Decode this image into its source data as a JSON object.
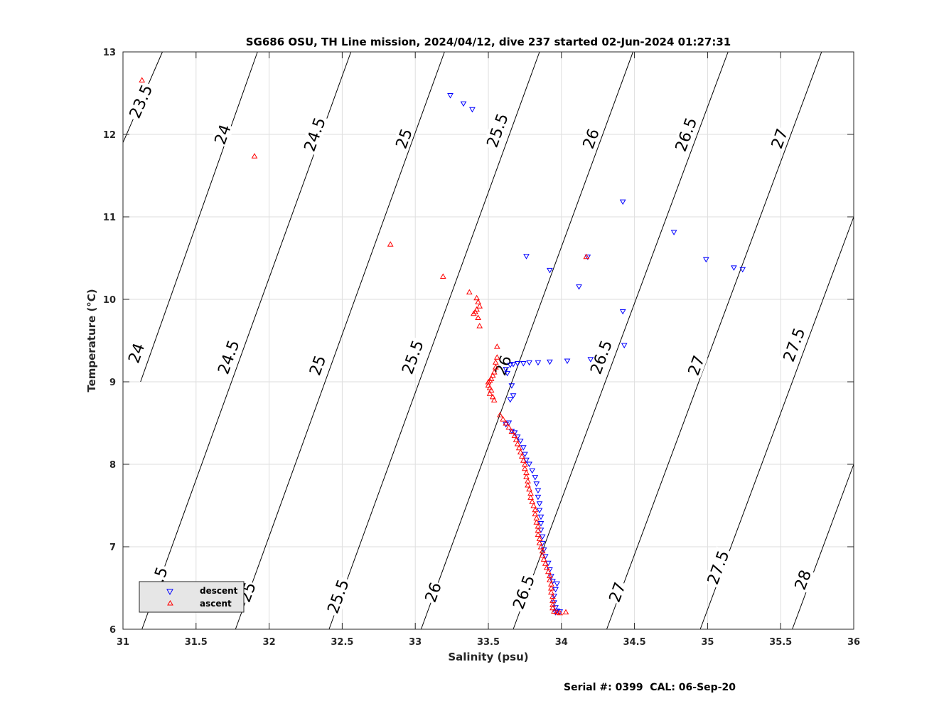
{
  "chart_data": {
    "type": "scatter",
    "title": "SG686 OSU, TH Line mission, 2024/04/12, dive 237 started 02-Jun-2024 01:27:31",
    "xlabel": "Salinity (psu)",
    "ylabel": "Temperature (°C)",
    "xlim": [
      31,
      36
    ],
    "ylim": [
      6,
      13
    ],
    "grid": true,
    "x_ticks": [
      31,
      31.5,
      32,
      32.5,
      33,
      33.5,
      34,
      34.5,
      35,
      35.5,
      36
    ],
    "x_tick_labels": [
      "31",
      "31.5",
      "32",
      "32.5",
      "33",
      "33.5",
      "34",
      "34.5",
      "35",
      "35.5",
      "36"
    ],
    "y_ticks": [
      6,
      7,
      8,
      9,
      10,
      11,
      12,
      13
    ],
    "y_tick_labels": [
      "6",
      "7",
      "8",
      "9",
      "10",
      "11",
      "12",
      "13"
    ],
    "legend": {
      "placement": "bottom-left",
      "entries": [
        {
          "label": "descent",
          "color": "#0000ff",
          "marker": "triangle-down"
        },
        {
          "label": "ascent",
          "color": "#ff0000",
          "marker": "triangle-up"
        }
      ]
    },
    "density_contours": [
      {
        "sigma": "23.5",
        "segments": [
          [
            [
              31.0,
              11.9
            ],
            [
              31.27,
              13.0
            ]
          ]
        ],
        "labels": [
          {
            "text": "23.5",
            "x": 31.12,
            "y": 12.4
          }
        ]
      },
      {
        "sigma": "24",
        "segments": [
          [
            [
              31.12,
              9.0
            ],
            [
              31.92,
              13.0
            ]
          ]
        ],
        "labels": [
          {
            "text": "24",
            "x": 31.09,
            "y": 9.35
          },
          {
            "text": "24",
            "x": 31.68,
            "y": 12.0
          }
        ]
      },
      {
        "sigma": "24.5",
        "segments": [
          [
            [
              31.13,
              6.0
            ],
            [
              32.56,
              13.0
            ]
          ]
        ],
        "labels": [
          {
            "text": "24.5",
            "x": 31.23,
            "y": 6.55
          },
          {
            "text": "24.5",
            "x": 31.72,
            "y": 9.3
          },
          {
            "text": "24.5",
            "x": 32.31,
            "y": 12.0
          }
        ]
      },
      {
        "sigma": "25",
        "segments": [
          [
            [
              31.77,
              6.0
            ],
            [
              33.2,
              13.0
            ]
          ]
        ],
        "labels": [
          {
            "text": "25",
            "x": 31.85,
            "y": 6.45
          },
          {
            "text": "25",
            "x": 32.33,
            "y": 9.2
          },
          {
            "text": "25",
            "x": 32.92,
            "y": 11.95
          }
        ]
      },
      {
        "sigma": "25.5",
        "segments": [
          [
            [
              32.41,
              6.0
            ],
            [
              33.85,
              13.0
            ]
          ]
        ],
        "labels": [
          {
            "text": "25.5",
            "x": 32.47,
            "y": 6.4
          },
          {
            "text": "25.5",
            "x": 32.98,
            "y": 9.3
          },
          {
            "text": "25.5",
            "x": 33.56,
            "y": 12.05
          }
        ]
      },
      {
        "sigma": "26",
        "segments": [
          [
            [
              33.04,
              6.0
            ],
            [
              34.49,
              13.0
            ]
          ]
        ],
        "labels": [
          {
            "text": "26",
            "x": 33.12,
            "y": 6.45
          },
          {
            "text": "26",
            "x": 33.6,
            "y": 9.2
          },
          {
            "text": "26",
            "x": 34.2,
            "y": 11.95
          }
        ]
      },
      {
        "sigma": "26.5",
        "segments": [
          [
            [
              33.67,
              6.0
            ],
            [
              35.14,
              13.0
            ]
          ]
        ],
        "labels": [
          {
            "text": "26.5",
            "x": 33.74,
            "y": 6.45
          },
          {
            "text": "26.5",
            "x": 34.27,
            "y": 9.3
          },
          {
            "text": "26.5",
            "x": 34.85,
            "y": 12.0
          }
        ]
      },
      {
        "sigma": "27",
        "segments": [
          [
            [
              34.31,
              6.0
            ],
            [
              35.78,
              13.0
            ]
          ]
        ],
        "labels": [
          {
            "text": "27",
            "x": 34.38,
            "y": 6.45
          },
          {
            "text": "27",
            "x": 34.92,
            "y": 9.2
          },
          {
            "text": "27",
            "x": 35.49,
            "y": 11.95
          }
        ]
      },
      {
        "sigma": "27.5",
        "segments": [
          [
            [
              34.95,
              6.0
            ],
            [
              36.0,
              11.0
            ]
          ]
        ],
        "labels": [
          {
            "text": "27.5",
            "x": 35.07,
            "y": 6.75
          },
          {
            "text": "27.5",
            "x": 35.59,
            "y": 9.45
          }
        ]
      },
      {
        "sigma": "28",
        "segments": [
          [
            [
              35.58,
              6.0
            ],
            [
              36.0,
              8.0
            ]
          ]
        ],
        "labels": [
          {
            "text": "28",
            "x": 35.65,
            "y": 6.6
          }
        ]
      }
    ],
    "series": [
      {
        "name": "descent",
        "color": "#0000ff",
        "marker": "triangle-down",
        "points": [
          [
            33.24,
            12.47
          ],
          [
            33.33,
            12.37
          ],
          [
            33.39,
            12.3
          ],
          [
            34.42,
            11.18
          ],
          [
            34.77,
            10.81
          ],
          [
            34.99,
            10.48
          ],
          [
            35.18,
            10.38
          ],
          [
            35.24,
            10.36
          ],
          [
            33.76,
            10.52
          ],
          [
            33.92,
            10.35
          ],
          [
            34.12,
            10.15
          ],
          [
            34.18,
            10.51
          ],
          [
            34.42,
            9.85
          ],
          [
            34.43,
            9.44
          ],
          [
            34.2,
            9.27
          ],
          [
            34.04,
            9.25
          ],
          [
            33.92,
            9.24
          ],
          [
            33.84,
            9.23
          ],
          [
            33.78,
            9.23
          ],
          [
            33.74,
            9.22
          ],
          [
            33.7,
            9.22
          ],
          [
            33.67,
            9.21
          ],
          [
            33.65,
            9.2
          ],
          [
            33.62,
            9.15
          ],
          [
            33.63,
            9.1
          ],
          [
            33.66,
            8.95
          ],
          [
            33.67,
            8.83
          ],
          [
            33.65,
            8.78
          ],
          [
            33.64,
            8.5
          ],
          [
            33.62,
            8.48
          ],
          [
            33.66,
            8.4
          ],
          [
            33.68,
            8.38
          ],
          [
            33.7,
            8.33
          ],
          [
            33.72,
            8.28
          ],
          [
            33.74,
            8.2
          ],
          [
            33.75,
            8.12
          ],
          [
            33.76,
            8.05
          ],
          [
            33.78,
            8.0
          ],
          [
            33.8,
            7.92
          ],
          [
            33.82,
            7.84
          ],
          [
            33.83,
            7.76
          ],
          [
            33.84,
            7.68
          ],
          [
            33.84,
            7.6
          ],
          [
            33.85,
            7.52
          ],
          [
            33.85,
            7.44
          ],
          [
            33.86,
            7.36
          ],
          [
            33.86,
            7.28
          ],
          [
            33.86,
            7.2
          ],
          [
            33.87,
            7.12
          ],
          [
            33.87,
            7.04
          ],
          [
            33.88,
            6.96
          ],
          [
            33.89,
            6.88
          ],
          [
            33.91,
            6.8
          ],
          [
            33.92,
            6.72
          ],
          [
            33.93,
            6.64
          ],
          [
            33.94,
            6.58
          ],
          [
            33.97,
            6.55
          ],
          [
            33.96,
            6.48
          ],
          [
            33.95,
            6.4
          ],
          [
            33.95,
            6.32
          ],
          [
            33.96,
            6.26
          ],
          [
            33.97,
            6.22
          ],
          [
            33.99,
            6.21
          ],
          [
            33.96,
            6.2
          ]
        ]
      },
      {
        "name": "ascent",
        "color": "#ff0000",
        "marker": "triangle-up",
        "points": [
          [
            31.13,
            12.66
          ],
          [
            31.9,
            11.74
          ],
          [
            32.83,
            10.67
          ],
          [
            33.19,
            10.28
          ],
          [
            34.17,
            10.52
          ],
          [
            33.37,
            10.09
          ],
          [
            33.42,
            10.02
          ],
          [
            33.43,
            9.97
          ],
          [
            33.44,
            9.92
          ],
          [
            33.42,
            9.88
          ],
          [
            33.41,
            9.85
          ],
          [
            33.4,
            9.83
          ],
          [
            33.43,
            9.78
          ],
          [
            33.44,
            9.68
          ],
          [
            33.56,
            9.43
          ],
          [
            33.56,
            9.3
          ],
          [
            33.55,
            9.24
          ],
          [
            33.55,
            9.18
          ],
          [
            33.54,
            9.12
          ],
          [
            33.53,
            9.08
          ],
          [
            33.52,
            9.04
          ],
          [
            33.51,
            9.02
          ],
          [
            33.5,
            9.0
          ],
          [
            33.5,
            8.96
          ],
          [
            33.51,
            8.93
          ],
          [
            33.52,
            8.9
          ],
          [
            33.51,
            8.86
          ],
          [
            33.53,
            8.82
          ],
          [
            33.54,
            8.78
          ],
          [
            33.58,
            8.6
          ],
          [
            33.6,
            8.55
          ],
          [
            33.62,
            8.5
          ],
          [
            33.64,
            8.45
          ],
          [
            33.66,
            8.4
          ],
          [
            33.68,
            8.35
          ],
          [
            33.69,
            8.3
          ],
          [
            33.7,
            8.25
          ],
          [
            33.71,
            8.2
          ],
          [
            33.72,
            8.15
          ],
          [
            33.73,
            8.1
          ],
          [
            33.74,
            8.05
          ],
          [
            33.75,
            8.0
          ],
          [
            33.75,
            7.95
          ],
          [
            33.76,
            7.9
          ],
          [
            33.76,
            7.85
          ],
          [
            33.77,
            7.8
          ],
          [
            33.77,
            7.75
          ],
          [
            33.78,
            7.7
          ],
          [
            33.79,
            7.65
          ],
          [
            33.79,
            7.6
          ],
          [
            33.8,
            7.55
          ],
          [
            33.81,
            7.5
          ],
          [
            33.82,
            7.45
          ],
          [
            33.82,
            7.4
          ],
          [
            33.83,
            7.35
          ],
          [
            33.83,
            7.3
          ],
          [
            33.84,
            7.25
          ],
          [
            33.84,
            7.2
          ],
          [
            33.84,
            7.15
          ],
          [
            33.85,
            7.1
          ],
          [
            33.85,
            7.05
          ],
          [
            33.86,
            7.0
          ],
          [
            33.87,
            6.95
          ],
          [
            33.87,
            6.9
          ],
          [
            33.88,
            6.85
          ],
          [
            33.89,
            6.8
          ],
          [
            33.9,
            6.75
          ],
          [
            33.91,
            6.7
          ],
          [
            33.92,
            6.65
          ],
          [
            33.92,
            6.6
          ],
          [
            33.93,
            6.55
          ],
          [
            33.93,
            6.5
          ],
          [
            33.93,
            6.45
          ],
          [
            33.94,
            6.4
          ],
          [
            33.94,
            6.35
          ],
          [
            33.94,
            6.3
          ],
          [
            33.94,
            6.26
          ],
          [
            33.95,
            6.22
          ],
          [
            33.97,
            6.21
          ],
          [
            33.99,
            6.2
          ],
          [
            34.03,
            6.21
          ]
        ]
      }
    ]
  },
  "footer": {
    "serial_text": "Serial #: 0399  CAL: 06-Sep-20"
  }
}
